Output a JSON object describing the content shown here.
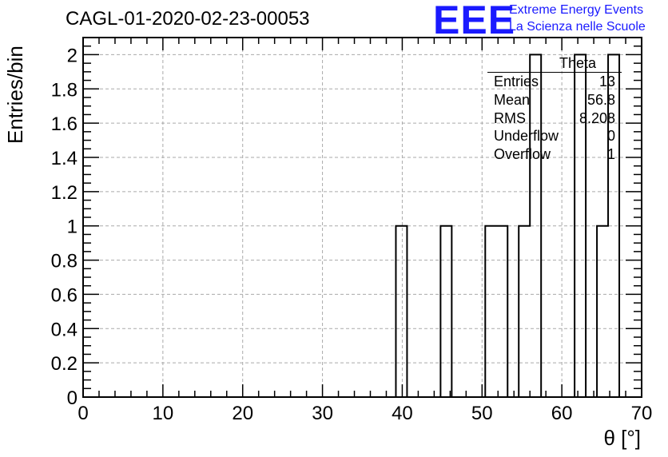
{
  "header": {
    "title": "CAGL-01-2020-02-23-00053",
    "logo_mark": "EEE",
    "logo_line1": "Extreme Energy Events",
    "logo_line2": "La Scienza nelle Scuole",
    "brand_color": "#1a1aff"
  },
  "stats_box": {
    "title": "Theta",
    "rows": [
      {
        "label": "Entries",
        "value": "13"
      },
      {
        "label": "Mean",
        "value": "56.8"
      },
      {
        "label": "RMS",
        "value": "8.208"
      },
      {
        "label": "Underflow",
        "value": "0"
      },
      {
        "label": "Overflow",
        "value": "1"
      }
    ]
  },
  "chart_data": {
    "type": "bar",
    "title": "CAGL-01-2020-02-23-00053",
    "xlabel": "θ [°]",
    "ylabel": "Entries/bin",
    "xlim": [
      0,
      70
    ],
    "ylim": [
      0,
      2.1
    ],
    "grid": true,
    "bin_width": 1.4,
    "xticks": [
      "0",
      "10",
      "20",
      "30",
      "40",
      "50",
      "60",
      "70"
    ],
    "yticks": [
      "0",
      "0.2",
      "0.4",
      "0.6",
      "0.8",
      "1",
      "1.2",
      "1.4",
      "1.6",
      "1.8",
      "2"
    ],
    "bins": [
      {
        "x": 39.2,
        "value": 1
      },
      {
        "x": 44.8,
        "value": 1
      },
      {
        "x": 50.4,
        "value": 1
      },
      {
        "x": 51.8,
        "value": 1
      },
      {
        "x": 54.6,
        "value": 1
      },
      {
        "x": 56.0,
        "value": 2
      },
      {
        "x": 61.6,
        "value": 2
      },
      {
        "x": 64.4,
        "value": 1
      },
      {
        "x": 65.8,
        "value": 2
      }
    ]
  }
}
